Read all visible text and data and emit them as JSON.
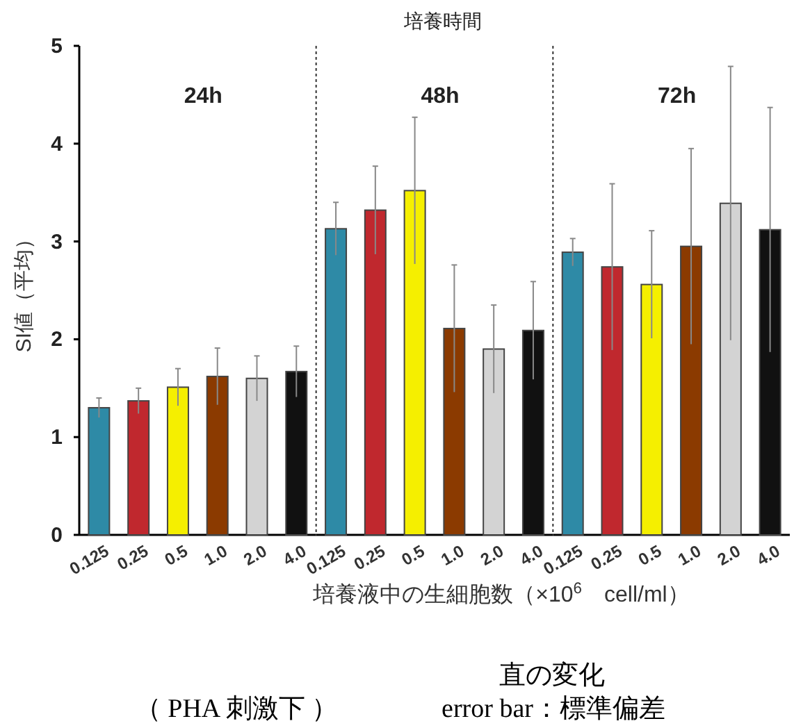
{
  "chart_data": [
    {
      "type": "bar",
      "title": "24h",
      "ylabel": "SI値（平均）",
      "categories": [
        "0.125",
        "0.25",
        "0.5",
        "1.0",
        "2.0",
        "4.0"
      ],
      "values": [
        1.3,
        1.37,
        1.51,
        1.62,
        1.6,
        1.67
      ],
      "errors": [
        0.1,
        0.13,
        0.19,
        0.29,
        0.23,
        0.26
      ],
      "colors": [
        "#2e8aa6",
        "#c0282e",
        "#f5ef00",
        "#8b3a00",
        "#d3d3d3",
        "#111111"
      ],
      "ylim": [
        0,
        5
      ],
      "yticks": [
        0,
        1,
        2,
        3,
        4,
        5
      ]
    },
    {
      "type": "bar",
      "title": "48h",
      "xlabel": "培養液中の生細胞数（×10$^{6}$　cell/ml）",
      "annotations": [
        "培養時間"
      ],
      "categories": [
        "0.125",
        "0.25",
        "0.5",
        "1.0",
        "2.0",
        "4.0"
      ],
      "values": [
        3.13,
        3.32,
        3.52,
        2.11,
        1.9,
        2.09
      ],
      "errors": [
        0.27,
        0.45,
        0.75,
        0.65,
        0.45,
        0.5
      ],
      "colors": [
        "#2e8aa6",
        "#c0282e",
        "#f5ef00",
        "#8b3a00",
        "#d3d3d3",
        "#111111"
      ],
      "ylim": [
        0,
        5
      ],
      "tick_labels": "x"
    },
    {
      "type": "bar",
      "title": "72h",
      "annotations": [
        "直の変化",
        "（ PHA 刺激下 ）",
        "error bar：標準偏差"
      ],
      "categories": [
        "0.125",
        "0.25",
        "0.5",
        "1.0",
        "2.0",
        "4.0"
      ],
      "values": [
        2.89,
        2.74,
        2.56,
        2.95,
        3.39,
        3.12
      ],
      "errors": [
        0.14,
        0.85,
        0.55,
        1.0,
        1.4,
        1.25
      ],
      "colors": [
        "#2e8aa6",
        "#c0282e",
        "#f5ef00",
        "#8b3a00",
        "#d3d3d3",
        "#111111"
      ],
      "ylim": [
        0,
        5
      ],
      "tick_labels": "x"
    }
  ]
}
